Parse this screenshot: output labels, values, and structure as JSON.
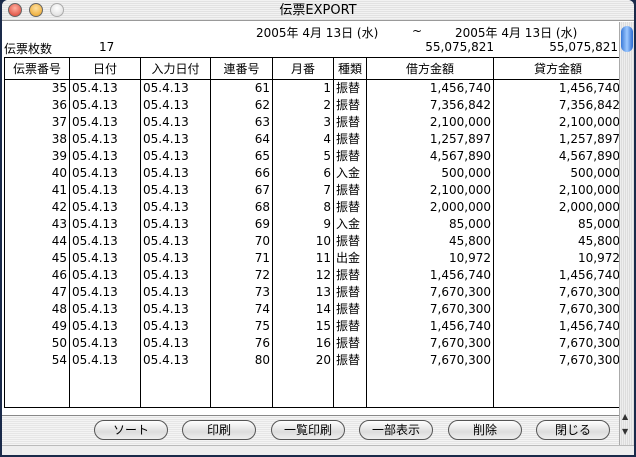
{
  "window": {
    "title": "伝票EXPORT"
  },
  "header": {
    "date_from": "2005年 4月 13日 (水)",
    "tilde": "~",
    "date_to": "2005年 4月 13日 (水)",
    "count_label": "伝票枚数",
    "count": "17",
    "debit_total": "55,075,821",
    "credit_total": "55,075,821"
  },
  "table": {
    "columns": [
      "伝票番号",
      "日付",
      "入力日付",
      "連番号",
      "月番",
      "種類",
      "借方金額",
      "貸方金額"
    ],
    "rows": [
      [
        "35",
        "05.4.13",
        "05.4.13",
        "61",
        "1",
        "振替",
        "1,456,740",
        "1,456,740"
      ],
      [
        "36",
        "05.4.13",
        "05.4.13",
        "62",
        "2",
        "振替",
        "7,356,842",
        "7,356,842"
      ],
      [
        "37",
        "05.4.13",
        "05.4.13",
        "63",
        "3",
        "振替",
        "2,100,000",
        "2,100,000"
      ],
      [
        "38",
        "05.4.13",
        "05.4.13",
        "64",
        "4",
        "振替",
        "1,257,897",
        "1,257,897"
      ],
      [
        "39",
        "05.4.13",
        "05.4.13",
        "65",
        "5",
        "振替",
        "4,567,890",
        "4,567,890"
      ],
      [
        "40",
        "05.4.13",
        "05.4.13",
        "66",
        "6",
        "入金",
        "500,000",
        "500,000"
      ],
      [
        "41",
        "05.4.13",
        "05.4.13",
        "67",
        "7",
        "振替",
        "2,100,000",
        "2,100,000"
      ],
      [
        "42",
        "05.4.13",
        "05.4.13",
        "68",
        "8",
        "振替",
        "2,000,000",
        "2,000,000"
      ],
      [
        "43",
        "05.4.13",
        "05.4.13",
        "69",
        "9",
        "入金",
        "85,000",
        "85,000"
      ],
      [
        "44",
        "05.4.13",
        "05.4.13",
        "70",
        "10",
        "振替",
        "45,800",
        "45,800"
      ],
      [
        "45",
        "05.4.13",
        "05.4.13",
        "71",
        "11",
        "出金",
        "10,972",
        "10,972"
      ],
      [
        "46",
        "05.4.13",
        "05.4.13",
        "72",
        "12",
        "振替",
        "1,456,740",
        "1,456,740"
      ],
      [
        "47",
        "05.4.13",
        "05.4.13",
        "73",
        "13",
        "振替",
        "7,670,300",
        "7,670,300"
      ],
      [
        "48",
        "05.4.13",
        "05.4.13",
        "74",
        "14",
        "振替",
        "7,670,300",
        "7,670,300"
      ],
      [
        "49",
        "05.4.13",
        "05.4.13",
        "75",
        "15",
        "振替",
        "1,456,740",
        "1,456,740"
      ],
      [
        "50",
        "05.4.13",
        "05.4.13",
        "76",
        "16",
        "振替",
        "7,670,300",
        "7,670,300"
      ],
      [
        "54",
        "05.4.13",
        "05.4.13",
        "80",
        "20",
        "振替",
        "7,670,300",
        "7,670,300"
      ]
    ]
  },
  "buttons": [
    "ソート",
    "印刷",
    "一覧印刷",
    "一部表示",
    "削除",
    "閉じる"
  ],
  "colors": {
    "close": "#d83a2e",
    "minimize": "#e8a020",
    "zoom": "#d8d8d8",
    "scroll_thumb": "#3a7ad8"
  }
}
